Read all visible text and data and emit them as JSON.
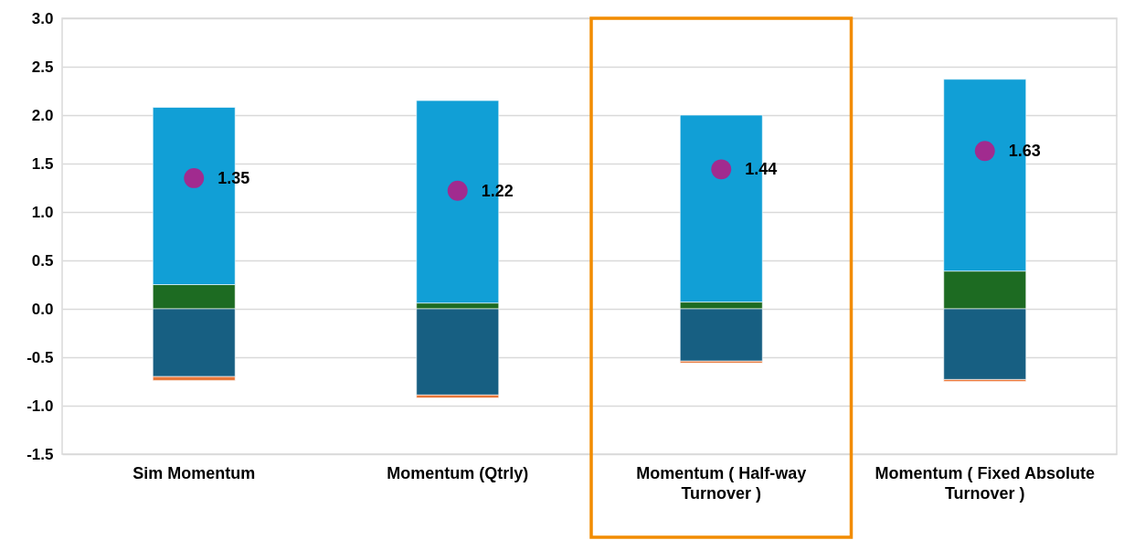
{
  "chart_data": {
    "type": "bar",
    "stacked": true,
    "categories": [
      "Sim Momentum",
      "Momentum (Qtrly)",
      "Momentum ( Half-way Turnover )",
      "Momentum ( Fixed Absolute Turnover )"
    ],
    "series": [
      {
        "color": "#1d6b22",
        "values": [
          0.25,
          0.06,
          0.07,
          0.39
        ]
      },
      {
        "color": "#119fd6",
        "values": [
          1.83,
          2.09,
          1.93,
          1.98
        ]
      },
      {
        "color": "#175f82",
        "values": [
          -0.7,
          -0.89,
          -0.54,
          -0.73
        ]
      },
      {
        "color": "#e8773a",
        "values": [
          -0.04,
          -0.03,
          -0.02,
          -0.02
        ]
      },
      {
        "type": "scatter",
        "color": "#a12b8f",
        "marker": "circle",
        "x": [
          "Sim Momentum",
          "Momentum (Qtrly)",
          "Momentum ( Half-way Turnover )",
          "Momentum ( Fixed Absolute Turnover )"
        ],
        "values": [
          1.35,
          1.22,
          1.44,
          1.63
        ],
        "value_labels": [
          "1.35",
          "1.22",
          "1.44",
          "1.63"
        ]
      }
    ],
    "ylim": [
      -1.5,
      3.0
    ],
    "yticks": [
      {
        "value": -1.5,
        "label": "-1.5"
      },
      {
        "value": -1.0,
        "label": "-1.0"
      },
      {
        "value": -0.5,
        "label": "-0.5"
      },
      {
        "value": 0,
        "label": "0.0"
      },
      {
        "value": 0.5,
        "label": "0.5"
      },
      {
        "value": 1.0,
        "label": "1.0"
      },
      {
        "value": 1.5,
        "label": "1.5"
      },
      {
        "value": 2.0,
        "label": "2.0"
      },
      {
        "value": 2.5,
        "label": "2.5"
      },
      {
        "value": 3.0,
        "label": "3.0"
      }
    ],
    "grid": "y"
  }
}
